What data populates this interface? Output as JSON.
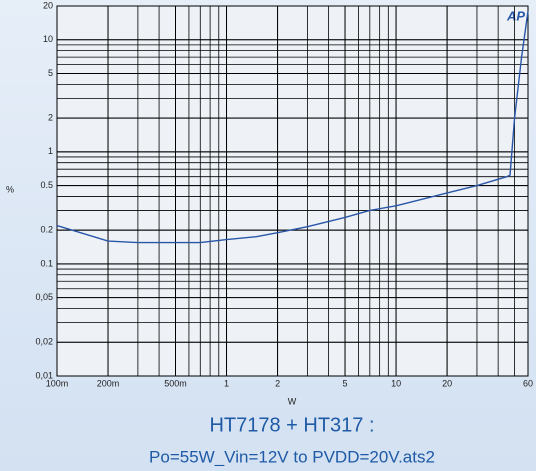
{
  "chart_data": {
    "type": "line",
    "title": "HT7178 + HT317 :",
    "subtitle": "Po=55W_Vin=12V to PVDD=20V.ats2",
    "x_label": "W",
    "y_label": "%",
    "logo": "AP",
    "log_x": true,
    "log_y": true,
    "grid": true,
    "minor_grid": true,
    "xlim": [
      0.1,
      60
    ],
    "ylim": [
      0.01,
      20
    ],
    "xticks": [
      {
        "value": 0.1,
        "label": "100m"
      },
      {
        "value": 0.2,
        "label": "200m"
      },
      {
        "value": 0.5,
        "label": "500m"
      },
      1,
      2,
      5,
      10,
      20,
      60
    ],
    "yticks": [
      {
        "value": 0.01,
        "label": "0,01"
      },
      {
        "value": 0.02,
        "label": "0,02"
      },
      {
        "value": 0.05,
        "label": "0,05"
      },
      0.1,
      0.2,
      0.5,
      1,
      2,
      5,
      10,
      20
    ],
    "series": [
      {
        "color": "#2a56a8",
        "x": [
          0.1,
          0.2,
          0.3,
          0.5,
          0.7,
          1,
          1.5,
          2,
          3,
          5,
          7,
          10,
          20,
          30,
          45,
          47,
          50,
          55,
          60
        ],
        "values": [
          0.22,
          0.16,
          0.155,
          0.155,
          0.155,
          0.165,
          0.175,
          0.19,
          0.215,
          0.26,
          0.3,
          0.33,
          0.43,
          0.5,
          0.6,
          0.62,
          2,
          7,
          18
        ]
      }
    ]
  }
}
